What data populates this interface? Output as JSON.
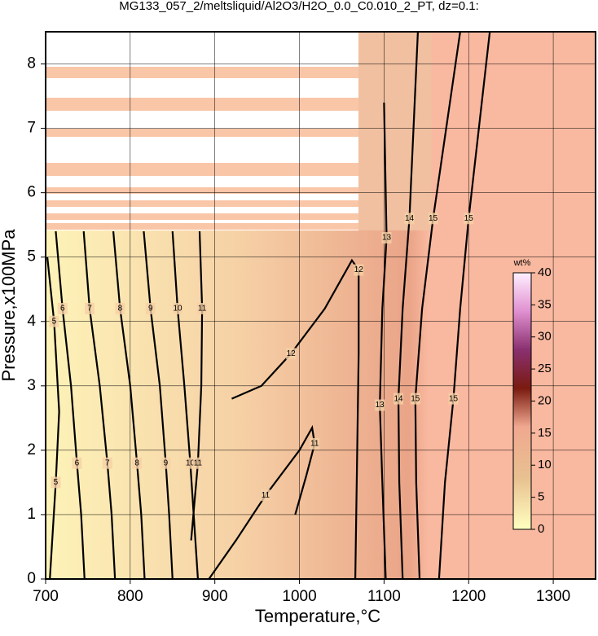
{
  "chart_data": {
    "type": "contour",
    "title": "MG133_057_2/meltsliquid/Al2O3/H2O_0.0_C0.010_2_PT, dz=0.1:",
    "x_label": "Temperature,°C",
    "y_label": "Pressure,x100MPa",
    "xlim": [
      700,
      1350
    ],
    "ylim": [
      0,
      8.5
    ],
    "xticks": [
      700,
      800,
      900,
      1000,
      1100,
      1200,
      1300
    ],
    "yticks": [
      0,
      1,
      2,
      3,
      4,
      5,
      6,
      7,
      8
    ],
    "grid": true,
    "contours": [
      {
        "level": 5,
        "x": [
          705,
          712,
          716,
          710,
          702
        ],
        "y": [
          0,
          1.5,
          2.6,
          4.0,
          5.0
        ]
      },
      {
        "level": 6,
        "x": [
          746,
          742,
          737,
          730,
          720,
          712
        ],
        "y": [
          0,
          1.0,
          1.8,
          3.0,
          4.2,
          5.4
        ]
      },
      {
        "level": 7,
        "x": [
          782,
          778,
          773,
          764,
          752,
          745
        ],
        "y": [
          0,
          1.0,
          1.8,
          3.0,
          4.2,
          5.4
        ]
      },
      {
        "level": 8,
        "x": [
          817,
          813,
          808,
          800,
          788,
          780
        ],
        "y": [
          0,
          1.0,
          1.8,
          3.0,
          4.2,
          5.4
        ]
      },
      {
        "level": 9,
        "x": [
          850,
          846,
          842,
          835,
          824,
          816
        ],
        "y": [
          0,
          1.0,
          1.8,
          3.0,
          4.2,
          5.4
        ]
      },
      {
        "level": 10,
        "x": [
          880,
          875,
          871,
          864,
          856,
          850
        ],
        "y": [
          0,
          1.0,
          1.8,
          3.0,
          4.2,
          5.4
        ]
      },
      {
        "level": 11,
        "x": [
          872,
          876,
          880,
          884,
          885,
          882
        ],
        "y": [
          0.6,
          1.2,
          1.8,
          3.0,
          4.2,
          5.4
        ]
      },
      {
        "level": 11,
        "x": [
          893,
          925,
          960,
          1000,
          1015,
          1018,
          1008,
          995
        ],
        "y": [
          0,
          0.6,
          1.3,
          2.0,
          2.35,
          2.1,
          1.6,
          1.0
        ]
      },
      {
        "level": 12,
        "x": [
          920,
          955,
          990,
          1030,
          1062,
          1070,
          1070,
          1066
        ],
        "y": [
          2.8,
          3.0,
          3.5,
          4.2,
          4.95,
          4.8,
          3.5,
          0.0
        ]
      },
      {
        "level": 13,
        "x": [
          1102,
          1098,
          1095,
          1098,
          1103,
          1100
        ],
        "y": [
          0,
          1.5,
          2.7,
          4.2,
          5.3,
          7.4
        ]
      },
      {
        "level": 14,
        "x": [
          1122,
          1118,
          1117,
          1122,
          1130,
          1140
        ],
        "y": [
          0,
          1.5,
          2.8,
          4.2,
          5.6,
          8.5
        ]
      },
      {
        "level": 15,
        "x": [
          1142,
          1138,
          1137,
          1145,
          1158,
          1190
        ],
        "y": [
          0,
          1.5,
          2.8,
          4.2,
          5.6,
          8.5
        ]
      },
      {
        "level": 15,
        "x": [
          1165,
          1172,
          1182,
          1190,
          1200,
          1225
        ],
        "y": [
          0,
          1.5,
          2.8,
          4.2,
          5.6,
          8.5
        ]
      }
    ],
    "colorbar": {
      "label": "wt%",
      "lim": [
        0,
        40
      ],
      "ticks": [
        0,
        5,
        10,
        15,
        20,
        25,
        30,
        35,
        40
      ]
    }
  }
}
